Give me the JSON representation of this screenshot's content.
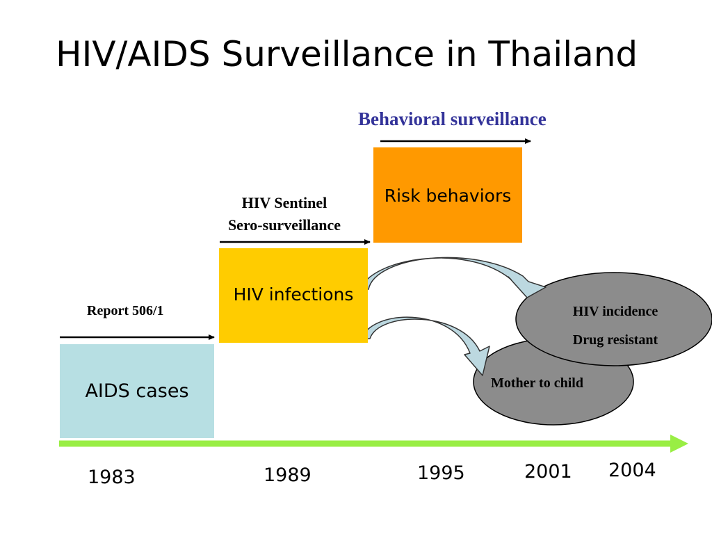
{
  "title": "HIV/AIDS Surveillance in Thailand",
  "stages": {
    "aids": {
      "label": "AIDS cases",
      "caption": "Report 506/1",
      "color": "#b7dfe3"
    },
    "hiv": {
      "label": "HIV infections",
      "caption_line1": "HIV Sentinel",
      "caption_line2": "Sero-surveillance",
      "color": "#ffcc00"
    },
    "risk": {
      "label": "Risk behaviors",
      "caption": "Behavioral surveillance",
      "caption_color": "#333399",
      "color": "#ff9900"
    }
  },
  "outcomes": {
    "incidence": {
      "line1": "HIV incidence",
      "line2": "Drug resistant"
    },
    "mtct": {
      "label": "Mother to child"
    },
    "color": "#8c8c8c"
  },
  "timeline": {
    "color": "#99ee44",
    "years": [
      "1983",
      "1989",
      "1995",
      "2001",
      "2004"
    ]
  }
}
